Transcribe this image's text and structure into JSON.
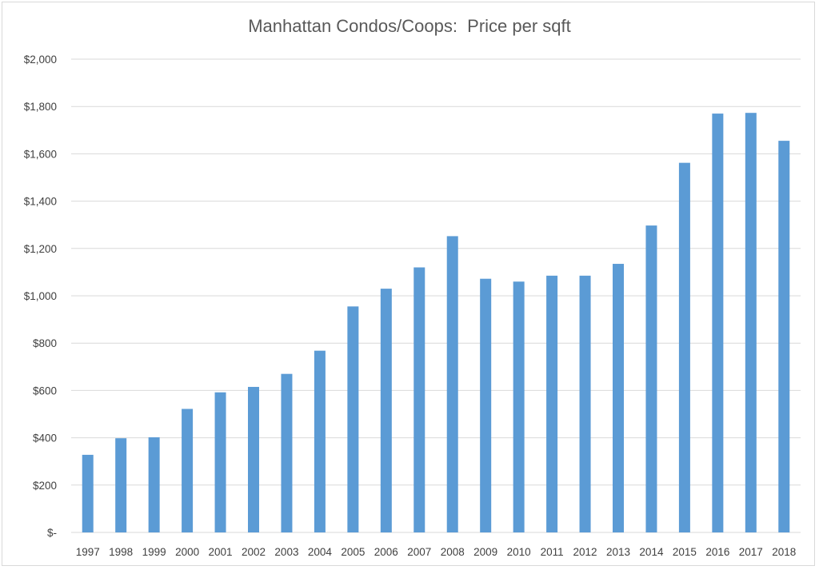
{
  "chart_data": {
    "type": "bar",
    "title": "Manhattan Condos/Coops:  Price per sqft",
    "xlabel": "",
    "ylabel": "",
    "categories": [
      "1997",
      "1998",
      "1999",
      "2000",
      "2001",
      "2002",
      "2003",
      "2004",
      "2005",
      "2006",
      "2007",
      "2008",
      "2009",
      "2010",
      "2011",
      "2012",
      "2013",
      "2014",
      "2015",
      "2016",
      "2017",
      "2018"
    ],
    "values": [
      328,
      398,
      402,
      522,
      592,
      615,
      670,
      768,
      955,
      1030,
      1120,
      1252,
      1072,
      1060,
      1085,
      1085,
      1135,
      1297,
      1562,
      1770,
      1773,
      1655
    ],
    "ylim": [
      0,
      2000
    ],
    "yticks": [
      0,
      200,
      400,
      600,
      800,
      1000,
      1200,
      1400,
      1600,
      1800,
      2000
    ],
    "ytick_labels": [
      "$-",
      "$200",
      "$400",
      "$600",
      "$800",
      "$1,000",
      "$1,200",
      "$1,400",
      "$1,600",
      "$1,800",
      "$2,000"
    ],
    "grid": true,
    "legend": "none",
    "bar_color": "#5b9bd5"
  }
}
